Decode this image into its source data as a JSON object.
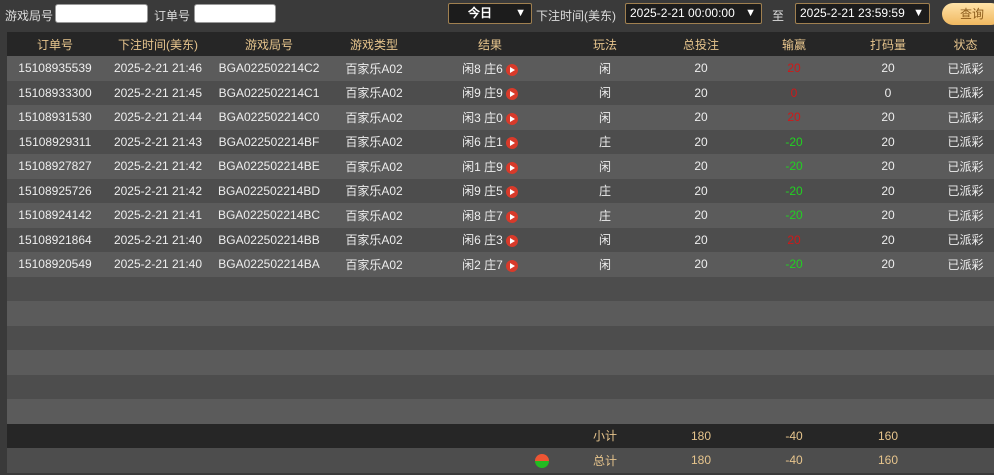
{
  "filters": {
    "round_label": "游戏局号",
    "round_value": "",
    "order_label": "订单号",
    "order_value": "",
    "period": "今日",
    "time_label": "下注时间(美东)",
    "start": "2025-2-21 00:00:00",
    "to": "至",
    "end": "2025-2-21 23:59:59",
    "query": "查询"
  },
  "columns": [
    "订单号",
    "下注时间(美东)",
    "游戏局号",
    "游戏类型",
    "结果",
    "玩法",
    "总投注",
    "输赢",
    "打码量",
    "状态"
  ],
  "rows": [
    [
      "15108935539",
      "2025-2-21 21:46",
      "BGA022502214C2",
      "百家乐A02",
      "闲8 庄6",
      "闲",
      "20",
      "20",
      "20",
      "已派彩",
      "red"
    ],
    [
      "15108933300",
      "2025-2-21 21:45",
      "BGA022502214C1",
      "百家乐A02",
      "闲9 庄9",
      "闲",
      "20",
      "0",
      "0",
      "已派彩",
      "red"
    ],
    [
      "15108931530",
      "2025-2-21 21:44",
      "BGA022502214C0",
      "百家乐A02",
      "闲3 庄0",
      "闲",
      "20",
      "20",
      "20",
      "已派彩",
      "red"
    ],
    [
      "15108929311",
      "2025-2-21 21:43",
      "BGA022502214BF",
      "百家乐A02",
      "闲6 庄1",
      "庄",
      "20",
      "-20",
      "20",
      "已派彩",
      "green"
    ],
    [
      "15108927827",
      "2025-2-21 21:42",
      "BGA022502214BE",
      "百家乐A02",
      "闲1 庄9",
      "闲",
      "20",
      "-20",
      "20",
      "已派彩",
      "green"
    ],
    [
      "15108925726",
      "2025-2-21 21:42",
      "BGA022502214BD",
      "百家乐A02",
      "闲9 庄5",
      "庄",
      "20",
      "-20",
      "20",
      "已派彩",
      "green"
    ],
    [
      "15108924142",
      "2025-2-21 21:41",
      "BGA022502214BC",
      "百家乐A02",
      "闲8 庄7",
      "庄",
      "20",
      "-20",
      "20",
      "已派彩",
      "green"
    ],
    [
      "15108921864",
      "2025-2-21 21:40",
      "BGA022502214BB",
      "百家乐A02",
      "闲6 庄3",
      "闲",
      "20",
      "20",
      "20",
      "已派彩",
      "red"
    ],
    [
      "15108920549",
      "2025-2-21 21:40",
      "BGA022502214BA",
      "百家乐A02",
      "闲2 庄7",
      "闲",
      "20",
      "-20",
      "20",
      "已派彩",
      "green"
    ]
  ],
  "subtotal": {
    "label": "小计",
    "bet": "180",
    "win": "-40",
    "valid": "160"
  },
  "total": {
    "label": "总计",
    "bet": "180",
    "win": "-40",
    "valid": "160"
  }
}
